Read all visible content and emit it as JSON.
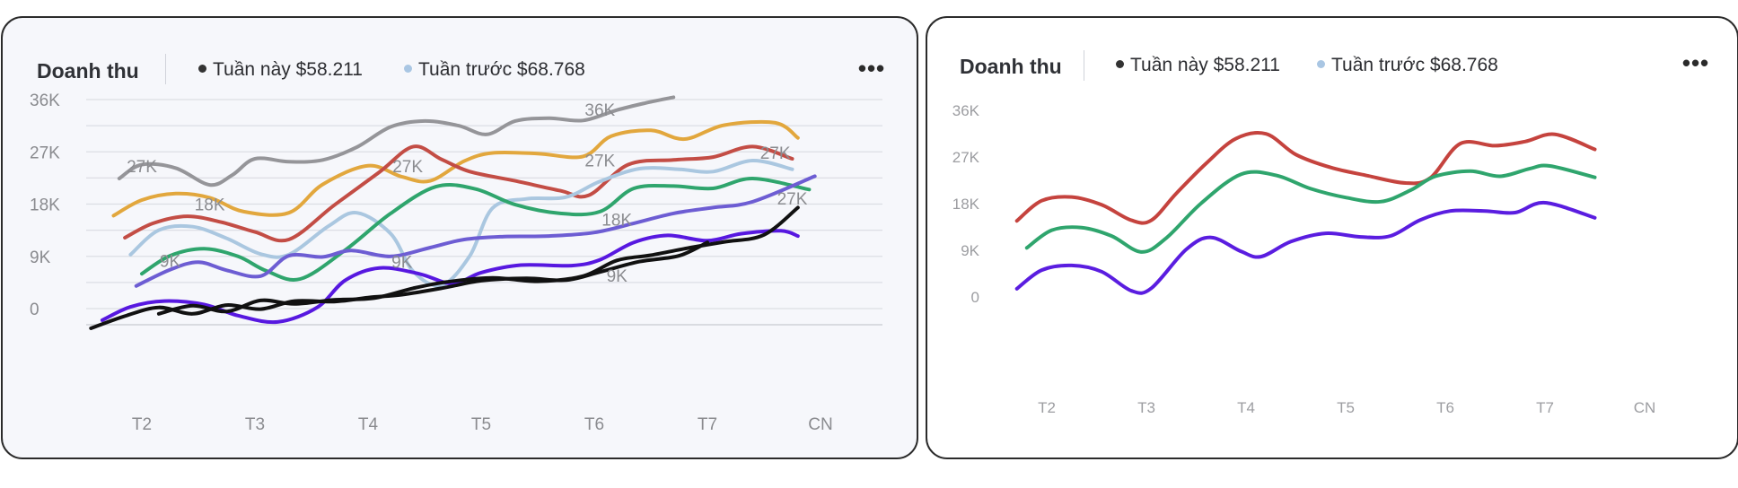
{
  "chart_data": [
    {
      "type": "line",
      "title": "Doanh thu",
      "legend": [
        {
          "label": "Tuần này",
          "value": "$58.211",
          "color": "#333333"
        },
        {
          "label": "Tuần trước",
          "value": "$68.768",
          "color": "#a9c6e3"
        }
      ],
      "legend_position": "top",
      "categories": [
        "T2",
        "T3",
        "T4",
        "T5",
        "T6",
        "T7",
        "CN"
      ],
      "y_ticks": [
        "0",
        "9K",
        "18K",
        "27K",
        "36K"
      ],
      "ylim": [
        0,
        36000
      ],
      "grid": true,
      "series": [
        {
          "color": "#959599",
          "points": [
            [
              0.8,
              22400
            ],
            [
              1,
              24800
            ],
            [
              1.3,
              24200
            ],
            [
              1.6,
              21300
            ],
            [
              1.8,
              23000
            ],
            [
              2,
              25800
            ],
            [
              2.3,
              25300
            ],
            [
              2.6,
              25600
            ],
            [
              2.9,
              27800
            ],
            [
              3.2,
              31300
            ],
            [
              3.5,
              32300
            ],
            [
              3.8,
              31500
            ],
            [
              4.05,
              30000
            ],
            [
              4.3,
              32300
            ],
            [
              4.6,
              32800
            ],
            [
              4.9,
              32400
            ],
            [
              5.2,
              34200
            ],
            [
              5.45,
              35400
            ],
            [
              5.7,
              36400
            ]
          ]
        },
        {
          "color": "#e2a73d",
          "points": [
            [
              0.75,
              16000
            ],
            [
              1,
              18700
            ],
            [
              1.3,
              19800
            ],
            [
              1.6,
              19100
            ],
            [
              1.9,
              16700
            ],
            [
              2.3,
              16500
            ],
            [
              2.6,
              21400
            ],
            [
              3,
              24600
            ],
            [
              3.3,
              22700
            ],
            [
              3.55,
              22000
            ],
            [
              3.85,
              25400
            ],
            [
              4.1,
              26800
            ],
            [
              4.5,
              26700
            ],
            [
              4.9,
              26200
            ],
            [
              5.15,
              29700
            ],
            [
              5.5,
              30700
            ],
            [
              5.8,
              29200
            ],
            [
              6.15,
              31600
            ],
            [
              6.6,
              32000
            ],
            [
              6.8,
              29400
            ]
          ]
        },
        {
          "color": "#c34d45",
          "points": [
            [
              0.85,
              12200
            ],
            [
              1.1,
              14700
            ],
            [
              1.4,
              15900
            ],
            [
              1.7,
              14900
            ],
            [
              2,
              13200
            ],
            [
              2.3,
              11900
            ],
            [
              2.7,
              17800
            ],
            [
              3.1,
              23500
            ],
            [
              3.4,
              27900
            ],
            [
              3.65,
              25700
            ],
            [
              3.9,
              23600
            ],
            [
              4.3,
              22000
            ],
            [
              4.7,
              20300
            ],
            [
              4.95,
              19500
            ],
            [
              5.3,
              24800
            ],
            [
              5.7,
              25600
            ],
            [
              6.05,
              26100
            ],
            [
              6.4,
              27900
            ],
            [
              6.75,
              25800
            ]
          ]
        },
        {
          "color": "#aac7e0",
          "points": [
            [
              0.9,
              9300
            ],
            [
              1.15,
              13500
            ],
            [
              1.45,
              14100
            ],
            [
              1.75,
              12100
            ],
            [
              2.05,
              9400
            ],
            [
              2.3,
              9300
            ],
            [
              2.65,
              14200
            ],
            [
              2.9,
              16500
            ],
            [
              3.2,
              12900
            ],
            [
              3.4,
              6400
            ],
            [
              3.65,
              4000
            ],
            [
              3.9,
              9100
            ],
            [
              4.1,
              17300
            ],
            [
              4.4,
              18900
            ],
            [
              4.75,
              19200
            ],
            [
              5.05,
              21900
            ],
            [
              5.4,
              24100
            ],
            [
              5.75,
              24000
            ],
            [
              6.05,
              23600
            ],
            [
              6.4,
              25500
            ],
            [
              6.75,
              24000
            ]
          ]
        },
        {
          "color": "#2fa56d",
          "points": [
            [
              1,
              6000
            ],
            [
              1.25,
              9100
            ],
            [
              1.55,
              10300
            ],
            [
              1.85,
              9000
            ],
            [
              2.1,
              6500
            ],
            [
              2.4,
              5100
            ],
            [
              2.8,
              10100
            ],
            [
              3.2,
              16400
            ],
            [
              3.6,
              21000
            ],
            [
              3.95,
              20600
            ],
            [
              4.3,
              17900
            ],
            [
              4.7,
              16400
            ],
            [
              5.05,
              16700
            ],
            [
              5.35,
              20700
            ],
            [
              5.7,
              21100
            ],
            [
              6.05,
              20700
            ],
            [
              6.4,
              22400
            ],
            [
              6.9,
              20500
            ]
          ]
        },
        {
          "color": "#6d5dd3",
          "points": [
            [
              0.95,
              3900
            ],
            [
              1.25,
              6700
            ],
            [
              1.5,
              8000
            ],
            [
              1.75,
              6600
            ],
            [
              2.05,
              5600
            ],
            [
              2.3,
              9100
            ],
            [
              2.6,
              8900
            ],
            [
              2.85,
              10000
            ],
            [
              3.2,
              9000
            ],
            [
              3.55,
              10500
            ],
            [
              3.85,
              11900
            ],
            [
              4.2,
              12400
            ],
            [
              4.6,
              12500
            ],
            [
              5,
              13100
            ],
            [
              5.35,
              14700
            ],
            [
              5.7,
              16400
            ],
            [
              6.05,
              17400
            ],
            [
              6.4,
              18400
            ],
            [
              6.95,
              22800
            ]
          ]
        },
        {
          "color": "#5718e0",
          "points": [
            [
              0.65,
              -2000
            ],
            [
              0.9,
              300
            ],
            [
              1.2,
              1300
            ],
            [
              1.55,
              700
            ],
            [
              1.85,
              -1200
            ],
            [
              2.2,
              -2300
            ],
            [
              2.55,
              200
            ],
            [
              2.8,
              4900
            ],
            [
              3.1,
              7000
            ],
            [
              3.45,
              6000
            ],
            [
              3.75,
              4300
            ],
            [
              4,
              6200
            ],
            [
              4.35,
              7500
            ],
            [
              4.8,
              7400
            ],
            [
              5.05,
              8400
            ],
            [
              5.35,
              11400
            ],
            [
              5.65,
              12600
            ],
            [
              6,
              11700
            ],
            [
              6.3,
              12900
            ],
            [
              6.65,
              13400
            ],
            [
              6.8,
              12500
            ]
          ]
        },
        {
          "color": "#111111",
          "points": [
            [
              0.55,
              -3400
            ],
            [
              0.85,
              -1300
            ],
            [
              1.15,
              200
            ],
            [
              1.45,
              -900
            ],
            [
              1.75,
              600
            ],
            [
              2.05,
              -100
            ],
            [
              2.35,
              1300
            ],
            [
              2.7,
              1200
            ],
            [
              3,
              1900
            ],
            [
              3.3,
              2400
            ],
            [
              3.65,
              3500
            ],
            [
              4,
              4800
            ],
            [
              4.4,
              5200
            ],
            [
              4.75,
              4900
            ],
            [
              5.05,
              6300
            ],
            [
              5.4,
              8100
            ],
            [
              5.75,
              9100
            ],
            [
              6,
              11400
            ]
          ]
        },
        {
          "color": "#111111",
          "points": [
            [
              1.15,
              -900
            ],
            [
              1.45,
              500
            ],
            [
              1.75,
              -500
            ],
            [
              2.05,
              1400
            ],
            [
              2.35,
              800
            ],
            [
              2.7,
              1500
            ],
            [
              3.05,
              1800
            ],
            [
              3.4,
              3500
            ],
            [
              3.7,
              4600
            ],
            [
              4.1,
              5300
            ],
            [
              4.5,
              4700
            ],
            [
              4.9,
              5600
            ],
            [
              5.2,
              8300
            ],
            [
              5.5,
              9200
            ],
            [
              5.85,
              10500
            ],
            [
              6.15,
              11500
            ],
            [
              6.5,
              12700
            ],
            [
              6.8,
              17400
            ]
          ]
        }
      ],
      "annotations": [
        {
          "text": "36K",
          "x": 5.05,
          "y": 33200
        },
        {
          "text": "27K",
          "x": 1.0,
          "y": 23500
        },
        {
          "text": "27K",
          "x": 3.35,
          "y": 23500
        },
        {
          "text": "27K",
          "x": 5.05,
          "y": 24500
        },
        {
          "text": "27K",
          "x": 6.6,
          "y": 25800
        },
        {
          "text": "27K",
          "x": 6.75,
          "y": 17900
        },
        {
          "text": "18K",
          "x": 1.6,
          "y": 16900
        },
        {
          "text": "18K",
          "x": 5.2,
          "y": 14300
        },
        {
          "text": "9K",
          "x": 1.25,
          "y": 7200
        },
        {
          "text": "9K",
          "x": 3.3,
          "y": 7000
        },
        {
          "text": "9K",
          "x": 5.2,
          "y": 4600
        }
      ]
    },
    {
      "type": "line",
      "title": "Doanh thu",
      "legend": [
        {
          "label": "Tuần này",
          "value": "$58.211",
          "color": "#333333"
        },
        {
          "label": "Tuần trước",
          "value": "$68.768",
          "color": "#a9c6e3"
        }
      ],
      "legend_position": "top",
      "categories": [
        "T2",
        "T3",
        "T4",
        "T5",
        "T6",
        "T7",
        "CN"
      ],
      "y_ticks": [
        "0",
        "9K",
        "18K",
        "27K",
        "36K"
      ],
      "ylim": [
        0,
        36000
      ],
      "grid": false,
      "series": [
        {
          "color": "#c5433e",
          "points": [
            [
              0.7,
              14500
            ],
            [
              0.95,
              18400
            ],
            [
              1.25,
              19100
            ],
            [
              1.55,
              17600
            ],
            [
              1.85,
              14600
            ],
            [
              2.05,
              14600
            ],
            [
              2.3,
              19800
            ],
            [
              2.6,
              25600
            ],
            [
              2.9,
              30400
            ],
            [
              3.2,
              31300
            ],
            [
              3.5,
              27300
            ],
            [
              3.85,
              24800
            ],
            [
              4.2,
              23300
            ],
            [
              4.6,
              21800
            ],
            [
              4.85,
              22800
            ],
            [
              5.15,
              29400
            ],
            [
              5.5,
              29000
            ],
            [
              5.8,
              29800
            ],
            [
              6.1,
              31200
            ],
            [
              6.5,
              28300
            ]
          ]
        },
        {
          "color": "#2fa56d",
          "points": [
            [
              0.8,
              9300
            ],
            [
              1.05,
              12700
            ],
            [
              1.35,
              13200
            ],
            [
              1.65,
              11600
            ],
            [
              1.95,
              8500
            ],
            [
              2.2,
              11200
            ],
            [
              2.55,
              17900
            ],
            [
              2.95,
              23500
            ],
            [
              3.3,
              23300
            ],
            [
              3.65,
              20700
            ],
            [
              4,
              19000
            ],
            [
              4.35,
              18200
            ],
            [
              4.65,
              20400
            ],
            [
              4.9,
              23100
            ],
            [
              5.25,
              24100
            ],
            [
              5.55,
              23100
            ],
            [
              5.85,
              24600
            ],
            [
              6.05,
              25100
            ],
            [
              6.5,
              22900
            ]
          ]
        },
        {
          "color": "#5a1de0",
          "points": [
            [
              0.7,
              1400
            ],
            [
              0.95,
              5000
            ],
            [
              1.25,
              5900
            ],
            [
              1.55,
              4700
            ],
            [
              1.85,
              1000
            ],
            [
              2.05,
              1500
            ],
            [
              2.4,
              9000
            ],
            [
              2.65,
              11300
            ],
            [
              2.95,
              8600
            ],
            [
              3.15,
              7600
            ],
            [
              3.45,
              10500
            ],
            [
              3.8,
              12100
            ],
            [
              4.15,
              11400
            ],
            [
              4.45,
              11600
            ],
            [
              4.75,
              14700
            ],
            [
              5.05,
              16400
            ],
            [
              5.4,
              16400
            ],
            [
              5.7,
              16100
            ],
            [
              6,
              18000
            ],
            [
              6.5,
              15100
            ]
          ]
        }
      ]
    }
  ]
}
